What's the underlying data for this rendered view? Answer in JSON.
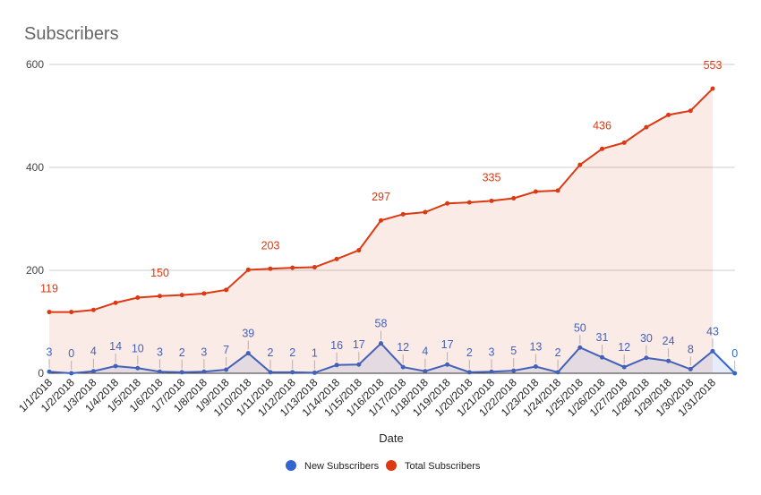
{
  "chart_data": {
    "type": "line",
    "title": "Subscribers",
    "x_label": "Date",
    "categories": [
      "1/1/2018",
      "1/2/2018",
      "1/3/2018",
      "1/4/2018",
      "1/5/2018",
      "1/6/2018",
      "1/7/2018",
      "1/8/2018",
      "1/9/2018",
      "1/10/2018",
      "1/11/2018",
      "1/12/2018",
      "1/13/2018",
      "1/14/2018",
      "1/15/2018",
      "1/16/2018",
      "1/17/2018",
      "1/18/2018",
      "1/19/2018",
      "1/20/2018",
      "1/21/2018",
      "1/22/2018",
      "1/23/2018",
      "1/24/2018",
      "1/25/2018",
      "1/26/2018",
      "1/27/2018",
      "1/28/2018",
      "1/29/2018",
      "1/30/2018",
      "1/31/2018",
      null
    ],
    "series": [
      {
        "name": "New Subscribers",
        "color": "#3366cc",
        "data_label_step": 1,
        "values": [
          3,
          0,
          4,
          14,
          10,
          3,
          2,
          3,
          7,
          39,
          2,
          2,
          1,
          16,
          17,
          58,
          12,
          4,
          17,
          2,
          3,
          5,
          13,
          2,
          50,
          31,
          12,
          30,
          24,
          8,
          43,
          0
        ]
      },
      {
        "name": "Total Subscribers",
        "color": "#dc3912",
        "data_label_step": 5,
        "values": [
          119,
          119,
          123,
          137,
          147,
          150,
          152,
          155,
          162,
          201,
          203,
          205,
          206,
          222,
          239,
          297,
          309,
          313,
          330,
          332,
          335,
          340,
          353,
          355,
          405,
          436,
          448,
          478,
          502,
          510,
          553,
          null
        ]
      }
    ],
    "ylim": [
      0,
      600
    ],
    "yticks": [
      0,
      200,
      400,
      600
    ],
    "grid": true,
    "area": true,
    "legend": "bottom"
  }
}
